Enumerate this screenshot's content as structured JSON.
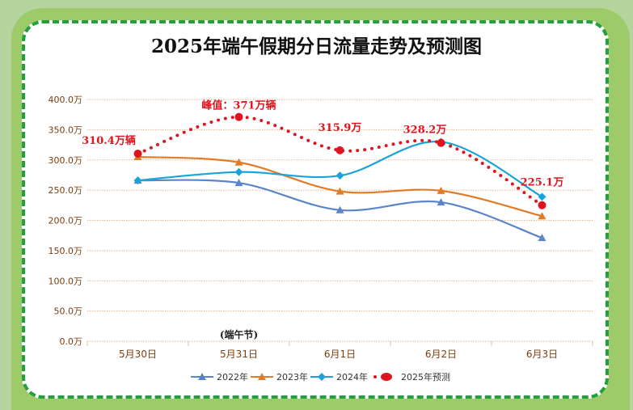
{
  "chart_data": {
    "type": "line",
    "title": "2025年端午假期分日流量走势及预测图",
    "categories": [
      "5月30日",
      "5月31日",
      "6月1日",
      "6月2日",
      "6月3日"
    ],
    "category_note": {
      "index": 1,
      "text": "(端午节)"
    },
    "ylim": [
      0,
      400
    ],
    "yticks": [
      "0.0万",
      "50.0万",
      "100.0万",
      "150.0万",
      "200.0万",
      "250.0万",
      "300.0万",
      "350.0万",
      "400.0万"
    ],
    "grid": true,
    "legend_position": "bottom",
    "series": [
      {
        "name": "2022年",
        "color": "#5b84c9",
        "marker": "triangle",
        "values": [
          266,
          262,
          217,
          230,
          171
        ]
      },
      {
        "name": "2023年",
        "color": "#e07b2a",
        "marker": "triangle",
        "values": [
          305,
          296,
          248,
          249,
          207
        ]
      },
      {
        "name": "2024年",
        "color": "#1aa3d8",
        "marker": "diamond",
        "values": [
          266,
          280,
          274,
          330,
          239
        ]
      },
      {
        "name": "2025年预测",
        "color": "#e0141e",
        "marker": "circle",
        "dotted": true,
        "values": [
          310.4,
          371,
          315.9,
          328.2,
          225.1
        ],
        "labels": [
          "310.4万辆",
          "峰值：371万辆",
          "315.9万",
          "328.2万",
          "225.1万"
        ]
      }
    ]
  }
}
